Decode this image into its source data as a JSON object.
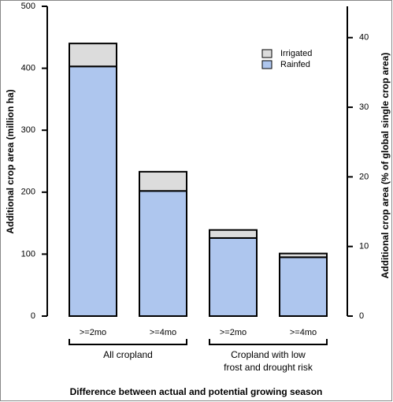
{
  "chart_data": {
    "type": "stacked_bar",
    "xlabel": "Difference between actual and potential growing season",
    "ylabel": "Additional crop area (million ha)",
    "y2label": "Additional crop area (% of global single crop area)",
    "categories": [
      ">=2mo",
      ">=4mo",
      ">=2mo",
      ">=4mo"
    ],
    "groups": [
      {
        "label": [
          "All cropland"
        ]
      },
      {
        "label": [
          "Cropland with low",
          "frost and drought risk"
        ]
      }
    ],
    "series": [
      {
        "name": "Irrigated",
        "color": "#dcdcdc",
        "values": [
          37,
          31,
          13,
          6
        ]
      },
      {
        "name": "Rainfed",
        "color": "#aec6ee",
        "values": [
          403,
          202,
          126,
          95
        ]
      }
    ],
    "ylim": [
      0,
      500
    ],
    "yticks": [
      0,
      100,
      200,
      300,
      400,
      500
    ],
    "y2lim": [
      0,
      44.5
    ],
    "y2ticks": [
      0,
      10,
      20,
      30,
      40
    ]
  }
}
